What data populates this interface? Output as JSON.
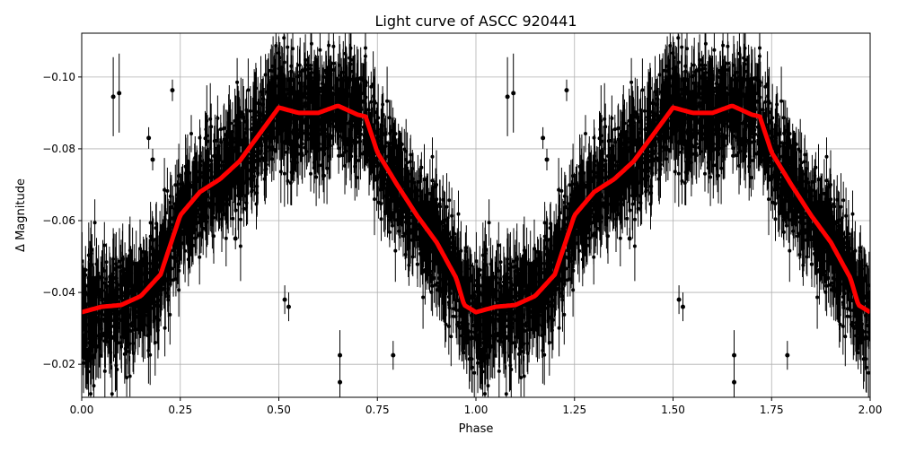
{
  "chart_data": {
    "type": "scatter",
    "title": "Light curve of ASCC 920441",
    "xlabel": "Phase",
    "ylabel": "Δ Magnitude",
    "xlim": [
      0.0,
      2.0
    ],
    "ylim": [
      -0.0108,
      -0.1122
    ],
    "y_inverted": true,
    "grid": true,
    "xticks": [
      "0.00",
      "0.25",
      "0.50",
      "0.75",
      "1.00",
      "1.25",
      "1.50",
      "1.75",
      "2.00"
    ],
    "xtick_values": [
      0,
      0.25,
      0.5,
      0.75,
      1.0,
      1.25,
      1.5,
      1.75,
      2.0
    ],
    "yticks": [
      "−0.02",
      "−0.04",
      "−0.06",
      "−0.08",
      "−0.10"
    ],
    "ytick_values": [
      -0.02,
      -0.04,
      -0.06,
      -0.08,
      -0.1
    ],
    "colors": {
      "points": "#000000",
      "model": "#ff0000",
      "grid": "#b0b0b0"
    },
    "model_curve": {
      "phase": [
        0.0,
        0.05,
        0.1,
        0.15,
        0.2,
        0.25,
        0.3,
        0.35,
        0.4,
        0.45,
        0.5,
        0.55,
        0.6,
        0.65,
        0.7,
        0.72,
        0.75,
        0.8,
        0.85,
        0.9,
        0.95,
        0.97,
        1.0,
        1.05,
        1.1,
        1.15,
        1.2,
        1.25,
        1.3,
        1.35,
        1.4,
        1.45,
        1.5,
        1.55,
        1.6,
        1.65,
        1.7,
        1.72,
        1.75,
        1.8,
        1.85,
        1.9,
        1.95,
        1.97,
        2.0
      ],
      "magnitude": [
        -0.0345,
        -0.036,
        -0.0365,
        -0.039,
        -0.045,
        -0.0615,
        -0.068,
        -0.0715,
        -0.0765,
        -0.084,
        -0.0915,
        -0.09,
        -0.09,
        -0.092,
        -0.0895,
        -0.089,
        -0.079,
        -0.07,
        -0.0615,
        -0.054,
        -0.044,
        -0.0365,
        -0.0345,
        -0.036,
        -0.0365,
        -0.039,
        -0.045,
        -0.0615,
        -0.068,
        -0.0715,
        -0.0765,
        -0.084,
        -0.0915,
        -0.09,
        -0.09,
        -0.092,
        -0.0895,
        -0.089,
        -0.079,
        -0.07,
        -0.0615,
        -0.054,
        -0.044,
        -0.0365,
        -0.0345
      ]
    },
    "observations_scatter_sigma": 0.009,
    "outliers": [
      {
        "phase": 0.08,
        "magnitude": -0.0945,
        "error": 0.011
      },
      {
        "phase": 0.095,
        "magnitude": -0.0955,
        "error": 0.011
      },
      {
        "phase": 0.17,
        "magnitude": -0.083,
        "error": 0.003
      },
      {
        "phase": 0.18,
        "magnitude": -0.077,
        "error": 0.003
      },
      {
        "phase": 0.23,
        "magnitude": -0.0963,
        "error": 0.003
      },
      {
        "phase": 0.39,
        "magnitude": -0.055,
        "error": 0.003
      },
      {
        "phase": 0.515,
        "magnitude": -0.038,
        "error": 0.004
      },
      {
        "phase": 0.525,
        "magnitude": -0.036,
        "error": 0.004
      },
      {
        "phase": 0.655,
        "magnitude": -0.0225,
        "error": 0.007
      },
      {
        "phase": 0.655,
        "magnitude": -0.015,
        "error": 0.005
      },
      {
        "phase": 0.79,
        "magnitude": -0.0225,
        "error": 0.004
      },
      {
        "phase": 1.08,
        "magnitude": -0.0945,
        "error": 0.011
      },
      {
        "phase": 1.095,
        "magnitude": -0.0955,
        "error": 0.011
      },
      {
        "phase": 1.17,
        "magnitude": -0.083,
        "error": 0.003
      },
      {
        "phase": 1.18,
        "magnitude": -0.077,
        "error": 0.003
      },
      {
        "phase": 1.23,
        "magnitude": -0.0963,
        "error": 0.003
      },
      {
        "phase": 1.39,
        "magnitude": -0.055,
        "error": 0.003
      },
      {
        "phase": 1.515,
        "magnitude": -0.038,
        "error": 0.004
      },
      {
        "phase": 1.525,
        "magnitude": -0.036,
        "error": 0.004
      },
      {
        "phase": 1.655,
        "magnitude": -0.0225,
        "error": 0.007
      },
      {
        "phase": 1.655,
        "magnitude": -0.015,
        "error": 0.005
      },
      {
        "phase": 1.79,
        "magnitude": -0.0225,
        "error": 0.004
      }
    ]
  }
}
